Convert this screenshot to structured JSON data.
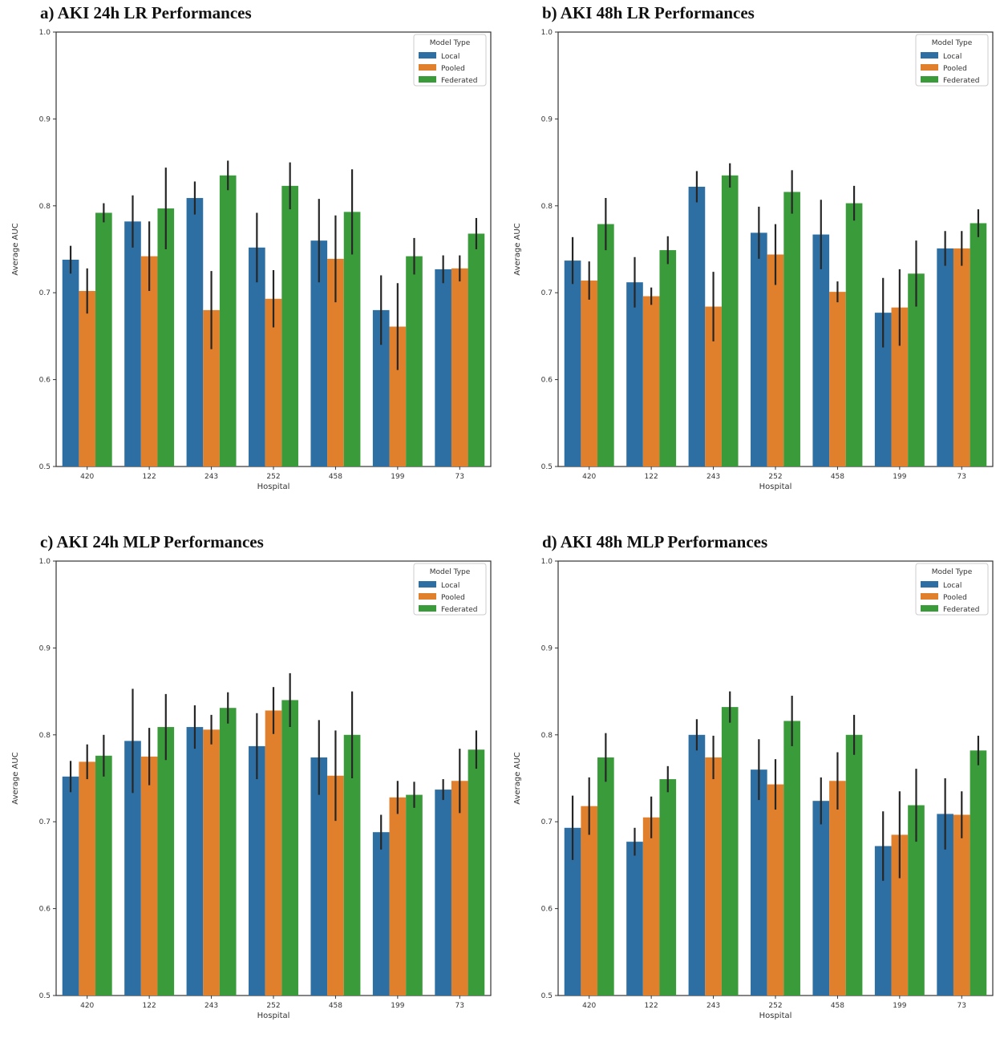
{
  "figure": {
    "legend_title": "Model Type",
    "xlabel": "Hospital",
    "ylabel": "Average AUC"
  },
  "colors": {
    "Local": "#2e6fa3",
    "Pooled": "#e07f2c",
    "Federated": "#3a9b3a"
  },
  "chart_data": [
    {
      "type": "bar",
      "title": "a) AKI 24h LR Performances",
      "xlabel": "Hospital",
      "ylabel": "Average AUC",
      "ylim": [
        0.5,
        1.0
      ],
      "yticks": [
        "0.5",
        "0.6",
        "0.7",
        "0.8",
        "0.9",
        "1.0"
      ],
      "categories": [
        "420",
        "122",
        "243",
        "252",
        "458",
        "199",
        "73"
      ],
      "legend_title": "Model Type",
      "legend_position": "top-right",
      "series": [
        {
          "name": "Local",
          "values": [
            0.738,
            0.782,
            0.809,
            0.752,
            0.76,
            0.68,
            0.727
          ],
          "err": [
            0.016,
            0.03,
            0.019,
            0.04,
            0.048,
            0.04,
            0.016
          ]
        },
        {
          "name": "Pooled",
          "values": [
            0.702,
            0.742,
            0.68,
            0.693,
            0.739,
            0.661,
            0.728
          ],
          "err": [
            0.026,
            0.04,
            0.045,
            0.033,
            0.05,
            0.05,
            0.015
          ]
        },
        {
          "name": "Federated",
          "values": [
            0.792,
            0.797,
            0.835,
            0.823,
            0.793,
            0.742,
            0.768
          ],
          "err": [
            0.011,
            0.047,
            0.017,
            0.027,
            0.049,
            0.021,
            0.018
          ]
        }
      ]
    },
    {
      "type": "bar",
      "title": "b) AKI 48h LR Performances",
      "xlabel": "Hospital",
      "ylabel": "Average AUC",
      "ylim": [
        0.5,
        1.0
      ],
      "yticks": [
        "0.5",
        "0.6",
        "0.7",
        "0.8",
        "0.9",
        "1.0"
      ],
      "categories": [
        "420",
        "122",
        "243",
        "252",
        "458",
        "199",
        "73"
      ],
      "legend_title": "Model Type",
      "legend_position": "top-right",
      "series": [
        {
          "name": "Local",
          "values": [
            0.737,
            0.712,
            0.822,
            0.769,
            0.767,
            0.677,
            0.751
          ],
          "err": [
            0.027,
            0.029,
            0.018,
            0.03,
            0.04,
            0.04,
            0.02
          ]
        },
        {
          "name": "Pooled",
          "values": [
            0.714,
            0.696,
            0.684,
            0.744,
            0.701,
            0.683,
            0.751
          ],
          "err": [
            0.022,
            0.01,
            0.04,
            0.035,
            0.012,
            0.044,
            0.02
          ]
        },
        {
          "name": "Federated",
          "values": [
            0.779,
            0.749,
            0.835,
            0.816,
            0.803,
            0.722,
            0.78
          ],
          "err": [
            0.03,
            0.016,
            0.014,
            0.025,
            0.02,
            0.038,
            0.016
          ]
        }
      ]
    },
    {
      "type": "bar",
      "title": "c) AKI 24h MLP Performances",
      "xlabel": "Hospital",
      "ylabel": "Average AUC",
      "ylim": [
        0.5,
        1.0
      ],
      "yticks": [
        "0.5",
        "0.6",
        "0.7",
        "0.8",
        "0.9",
        "1.0"
      ],
      "categories": [
        "420",
        "122",
        "243",
        "252",
        "458",
        "199",
        "73"
      ],
      "legend_title": "Model Type",
      "legend_position": "top-right",
      "series": [
        {
          "name": "Local",
          "values": [
            0.752,
            0.793,
            0.809,
            0.787,
            0.774,
            0.688,
            0.737
          ],
          "err": [
            0.018,
            0.06,
            0.025,
            0.038,
            0.043,
            0.02,
            0.012
          ]
        },
        {
          "name": "Pooled",
          "values": [
            0.769,
            0.775,
            0.806,
            0.828,
            0.753,
            0.728,
            0.747
          ],
          "err": [
            0.02,
            0.033,
            0.017,
            0.027,
            0.052,
            0.019,
            0.037
          ]
        },
        {
          "name": "Federated",
          "values": [
            0.776,
            0.809,
            0.831,
            0.84,
            0.8,
            0.731,
            0.783
          ],
          "err": [
            0.024,
            0.038,
            0.018,
            0.031,
            0.05,
            0.015,
            0.022
          ]
        }
      ]
    },
    {
      "type": "bar",
      "title": "d) AKI 48h MLP Performances",
      "xlabel": "Hospital",
      "ylabel": "Average AUC",
      "ylim": [
        0.5,
        1.0
      ],
      "yticks": [
        "0.5",
        "0.6",
        "0.7",
        "0.8",
        "0.9",
        "1.0"
      ],
      "categories": [
        "420",
        "122",
        "243",
        "252",
        "458",
        "199",
        "73"
      ],
      "legend_title": "Model Type",
      "legend_position": "top-right",
      "series": [
        {
          "name": "Local",
          "values": [
            0.693,
            0.677,
            0.8,
            0.76,
            0.724,
            0.672,
            0.709
          ],
          "err": [
            0.037,
            0.016,
            0.018,
            0.035,
            0.027,
            0.04,
            0.041
          ]
        },
        {
          "name": "Pooled",
          "values": [
            0.718,
            0.705,
            0.774,
            0.743,
            0.747,
            0.685,
            0.708
          ],
          "err": [
            0.033,
            0.024,
            0.025,
            0.029,
            0.033,
            0.05,
            0.027
          ]
        },
        {
          "name": "Federated",
          "values": [
            0.774,
            0.749,
            0.832,
            0.816,
            0.8,
            0.719,
            0.782
          ],
          "err": [
            0.028,
            0.015,
            0.018,
            0.029,
            0.023,
            0.042,
            0.017
          ]
        }
      ]
    }
  ]
}
